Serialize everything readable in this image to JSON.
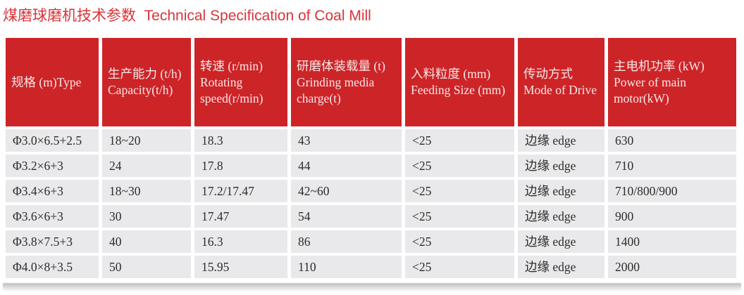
{
  "title": {
    "text": "煤磨球磨机技术参数  Technical Specification of Coal Mill"
  },
  "colors": {
    "title_red": "#d8343a",
    "header_red": "#cd2428",
    "header_text": "#f4e9e8",
    "row_gray": "#e9e8ea",
    "body_text": "#2e2d2b"
  },
  "table": {
    "headers": [
      "规格 (m)Type",
      "生产能力 (t/h)\nCapacity(t/h)",
      "转速 (r/min)\nRotating\nspeed(r/min)",
      "研磨体装载量 (t)\nGrinding media\ncharge(t)",
      "入料粒度 (mm)\nFeeding Size (mm)",
      "传动方式\nMode of Drive",
      "主电机功率 (kW)\nPower of main\nmotor(kW)"
    ],
    "rows": [
      [
        "Φ3.0×6.5+2.5",
        "18~20",
        "18.3",
        "43",
        "<25",
        "边缘 edge",
        "630"
      ],
      [
        "Φ3.2×6+3",
        "24",
        "17.8",
        "44",
        "<25",
        "边缘 edge",
        "710"
      ],
      [
        "Φ3.4×6+3",
        "18~30",
        "17.2/17.47",
        "42~60",
        "<25",
        "边缘 edge",
        "710/800/900"
      ],
      [
        "Φ3.6×6+3",
        "30",
        "17.47",
        "54",
        "<25",
        "边缘 edge",
        "900"
      ],
      [
        "Φ3.8×7.5+3",
        "40",
        "16.3",
        "86",
        "<25",
        "边缘 edge",
        "1400"
      ],
      [
        "Φ4.0×8+3.5",
        "50",
        "15.95",
        "110",
        "<25",
        "边缘 edge",
        "2000"
      ]
    ]
  }
}
